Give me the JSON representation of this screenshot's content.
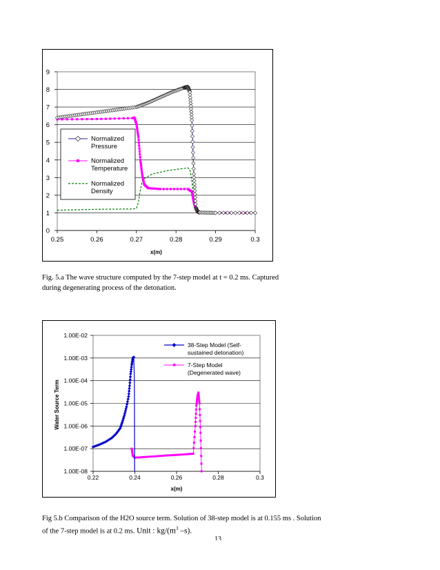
{
  "chart_data": [
    {
      "type": "line",
      "xlabel": "x(m)",
      "ylabel": "",
      "xlim": [
        0.25,
        0.3
      ],
      "ylim": [
        0,
        9
      ],
      "x_ticks": [
        "0.25",
        "0.26",
        "0.27",
        "0.28",
        "0.29",
        "0.3"
      ],
      "y_ticks": [
        "0",
        "1",
        "2",
        "3",
        "4",
        "5",
        "6",
        "7",
        "8",
        "9"
      ],
      "grid": "horizontal",
      "legend_position": "left-middle",
      "series": [
        {
          "name": "Normalized Pressure",
          "color": "#2020a0",
          "marker": "diamond-open",
          "x": [
            0.25,
            0.255,
            0.26,
            0.265,
            0.27,
            0.273,
            0.276,
            0.279,
            0.282,
            0.283,
            0.2835,
            0.284,
            0.2845,
            0.285,
            0.2855,
            0.286,
            0.29,
            0.3
          ],
          "y": [
            6.4,
            6.55,
            6.7,
            6.85,
            7.0,
            7.25,
            7.55,
            7.85,
            8.1,
            8.15,
            7.85,
            6.25,
            3.2,
            1.3,
            1.05,
            1.02,
            1.0,
            1.0
          ]
        },
        {
          "name": "Normalized Temperature",
          "color": "#ff00ff",
          "marker": "square",
          "x": [
            0.25,
            0.26,
            0.269,
            0.2695,
            0.27,
            0.2705,
            0.271,
            0.2715,
            0.272,
            0.273,
            0.276,
            0.283,
            0.284,
            0.2845,
            0.285,
            0.2855,
            0.286,
            0.29,
            0.3
          ],
          "y": [
            6.3,
            6.32,
            6.37,
            6.4,
            6.05,
            5.3,
            4.0,
            3.1,
            2.6,
            2.4,
            2.35,
            2.35,
            2.2,
            1.6,
            1.2,
            1.05,
            1.02,
            1.0,
            1.0
          ]
        },
        {
          "name": "Normalized Density",
          "color": "#008000",
          "marker": "none",
          "x": [
            0.25,
            0.26,
            0.269,
            0.27,
            0.2705,
            0.271,
            0.2715,
            0.272,
            0.274,
            0.278,
            0.283,
            0.2835,
            0.284,
            0.2845,
            0.285,
            0.286,
            0.29,
            0.3
          ],
          "y": [
            1.15,
            1.2,
            1.22,
            1.25,
            1.6,
            2.3,
            2.8,
            2.95,
            3.2,
            3.4,
            3.55,
            3.45,
            2.8,
            1.8,
            1.2,
            1.02,
            1.0,
            1.0
          ]
        }
      ]
    },
    {
      "type": "line",
      "xlabel": "x(m)",
      "ylabel": "Water Source Term",
      "xlim": [
        0.22,
        0.3
      ],
      "ylim": [
        -8,
        -2
      ],
      "y_scale": "log",
      "x_ticks": [
        "0.22",
        "0.24",
        "0.26",
        "0.28",
        "0.3"
      ],
      "y_ticks": [
        "1.00E-08",
        "1.00E-07",
        "1.00E-06",
        "1.00E-05",
        "1.00E-04",
        "1.00E-03",
        "1.00E-02"
      ],
      "grid": "horizontal",
      "legend_position": "top-right",
      "series": [
        {
          "name": "38-Step Model (Self-sustained detonation)",
          "color": "#0000cc",
          "marker": "diamond",
          "x": [
            0.22,
            0.223,
            0.226,
            0.229,
            0.231,
            0.233,
            0.234,
            0.235,
            0.236,
            0.237,
            0.2375,
            0.238,
            0.2385,
            0.239,
            0.2395,
            0.2398,
            0.2399
          ],
          "y": [
            1.2e-07,
            1.5e-07,
            2e-07,
            3e-07,
            4.5e-07,
            8e-07,
            1.5e-06,
            3e-06,
            7e-06,
            2e-05,
            6e-05,
            0.0002,
            0.0005,
            0.001,
            0.0011,
            0.0001,
            1e-08
          ]
        },
        {
          "name": "7-Step Model (Degenerated wave)",
          "color": "#ff00ff",
          "marker": "square",
          "x": [
            0.2385,
            0.239,
            0.24,
            0.245,
            0.25,
            0.255,
            0.26,
            0.265,
            0.268,
            0.269,
            0.2695,
            0.27,
            0.2705,
            0.271,
            0.2715,
            0.272
          ],
          "y": [
            1e-07,
            5e-08,
            4e-08,
            4.3e-08,
            4.6e-08,
            5e-08,
            5.3e-08,
            5.7e-08,
            6e-08,
            1e-06,
            8e-06,
            2e-05,
            3e-05,
            1e-05,
            5e-07,
            1e-08
          ]
        }
      ]
    }
  ],
  "legend1": {
    "pressure": [
      "Normalized",
      "Pressure"
    ],
    "temperature": [
      "Normalized",
      "Temperature"
    ],
    "density": [
      "Normalized",
      "Density"
    ]
  },
  "legend2": {
    "s38": [
      "38-Step Model (Self-",
      "sustained detonation)"
    ],
    "s7": [
      "7-Step Model",
      "(Degenerated wave)"
    ]
  },
  "captions": {
    "fig5a_line1": "Fig. 5.a   The wave structure computed by the 7-step model  at t = 0.2 ms. Captured",
    "fig5a_line2": "during degenerating process of the detonation.",
    "fig5b_line1": "Fig 5.b   Comparison of the H2O source term. Solution of 38-step model is at 0.155 ms . Solution",
    "fig5b_line2_prefix": "of the 7-step model is at 0.2 ms. ",
    "fig5b_unit": "Unit : kg/(m",
    "fig5b_sup": "3",
    "fig5b_suffix": " –s)."
  },
  "page_number": "13"
}
